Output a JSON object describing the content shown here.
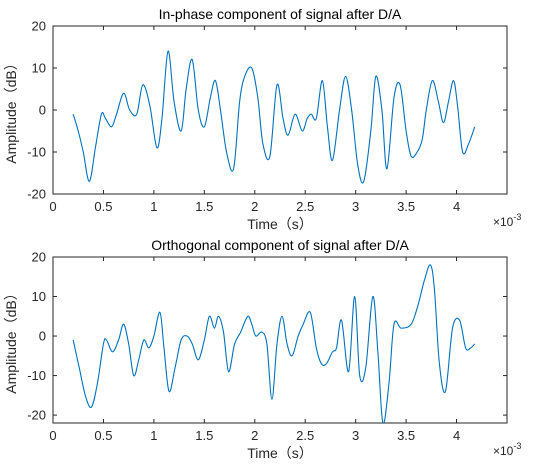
{
  "chart_data": [
    {
      "type": "line",
      "title": "In-phase component of signal after D/A",
      "xlabel": "Time（s）",
      "ylabel": "Amplitude（dB）",
      "x_exponent_base": "×10",
      "x_exponent": "-3",
      "xlim": [
        0,
        4.5
      ],
      "ylim": [
        -20,
        20
      ],
      "xticks": [
        "0",
        "0.5",
        "1",
        "1.5",
        "2",
        "2.5",
        "3",
        "3.5",
        "4"
      ],
      "yticks": [
        "-20",
        "-10",
        "0",
        "10",
        "20"
      ],
      "line_color": "#0072bd",
      "grid": false,
      "series": [
        {
          "x": [
            0.2,
            0.25,
            0.3,
            0.36,
            0.42,
            0.48,
            0.52,
            0.58,
            0.63,
            0.7,
            0.76,
            0.83,
            0.89,
            0.96,
            1.03,
            1.08,
            1.14,
            1.2,
            1.27,
            1.32,
            1.38,
            1.44,
            1.5,
            1.56,
            1.61,
            1.66,
            1.72,
            1.79,
            1.85,
            1.9,
            1.97,
            2.03,
            2.08,
            2.15,
            2.22,
            2.28,
            2.33,
            2.4,
            2.47,
            2.52,
            2.56,
            2.61,
            2.67,
            2.72,
            2.77,
            2.84,
            2.9,
            2.96,
            3.02,
            3.08,
            3.15,
            3.2,
            3.26,
            3.31,
            3.38,
            3.44,
            3.5,
            3.55,
            3.61,
            3.66,
            3.7,
            3.76,
            3.82,
            3.87,
            3.92,
            3.97,
            4.01,
            4.06,
            4.12,
            4.18
          ],
          "y": [
            -1,
            -5,
            -10,
            -17,
            -9,
            -1,
            -2,
            -4,
            -1,
            4,
            0,
            -1,
            6,
            1,
            -9,
            -2,
            14,
            2,
            -5,
            5,
            12,
            0,
            -4,
            3,
            7,
            0,
            -10,
            -14,
            2,
            8,
            10,
            3,
            -8,
            -11,
            6,
            -2,
            -6,
            -1,
            -5,
            -2,
            -1,
            -2,
            7,
            -4,
            -12,
            0,
            8,
            0,
            -13,
            -17,
            -5,
            8,
            0,
            -14,
            3,
            6,
            -5,
            -11,
            -10,
            -7,
            0,
            7,
            2,
            -3,
            2,
            7,
            1,
            -10,
            -8,
            -4
          ]
        }
      ]
    },
    {
      "type": "line",
      "title": "Orthogonal component of signal after D/A",
      "xlabel": "Time（s）",
      "ylabel": "Amplitude（dB）",
      "x_exponent_base": "×10",
      "x_exponent": "-3",
      "xlim": [
        0,
        4.5
      ],
      "ylim": [
        -22,
        20
      ],
      "xticks": [
        "0",
        "0.5",
        "1",
        "1.5",
        "2",
        "2.5",
        "3",
        "3.5",
        "4"
      ],
      "yticks": [
        "-20",
        "-10",
        "0",
        "10",
        "20"
      ],
      "line_color": "#0072bd",
      "grid": false,
      "series": [
        {
          "x": [
            0.2,
            0.26,
            0.32,
            0.38,
            0.44,
            0.5,
            0.53,
            0.59,
            0.65,
            0.7,
            0.75,
            0.8,
            0.85,
            0.9,
            0.95,
            1.0,
            1.06,
            1.1,
            1.15,
            1.21,
            1.27,
            1.33,
            1.38,
            1.44,
            1.5,
            1.55,
            1.6,
            1.64,
            1.69,
            1.74,
            1.8,
            1.86,
            1.93,
            1.97,
            2.01,
            2.07,
            2.12,
            2.17,
            2.22,
            2.27,
            2.32,
            2.37,
            2.43,
            2.48,
            2.55,
            2.61,
            2.66,
            2.71,
            2.77,
            2.81,
            2.86,
            2.93,
            2.99,
            3.04,
            3.1,
            3.17,
            3.22,
            3.27,
            3.33,
            3.38,
            3.45,
            3.55,
            3.62,
            3.68,
            3.74,
            3.78,
            3.83,
            3.89,
            3.96,
            4.03,
            4.09,
            4.14,
            4.18
          ],
          "y": [
            -1,
            -8,
            -15,
            -18,
            -12,
            -2,
            -1,
            -4,
            -1,
            3,
            -2,
            -10,
            -6,
            -1,
            -3,
            0,
            6,
            -3,
            -14,
            -8,
            -1,
            0,
            -2,
            -6,
            -1,
            5,
            2,
            5,
            1,
            -9,
            -2,
            1,
            5,
            3,
            0,
            1,
            -2,
            -16,
            -2,
            5,
            -2,
            -5,
            0,
            3,
            6,
            -3,
            -7,
            -7,
            -4,
            -3,
            4,
            -9,
            10,
            -10,
            -8,
            10,
            -4,
            -22,
            -12,
            3,
            2,
            3,
            8,
            14,
            18,
            12,
            -7,
            -14,
            2,
            4,
            -3,
            -3,
            -2
          ]
        }
      ]
    }
  ]
}
